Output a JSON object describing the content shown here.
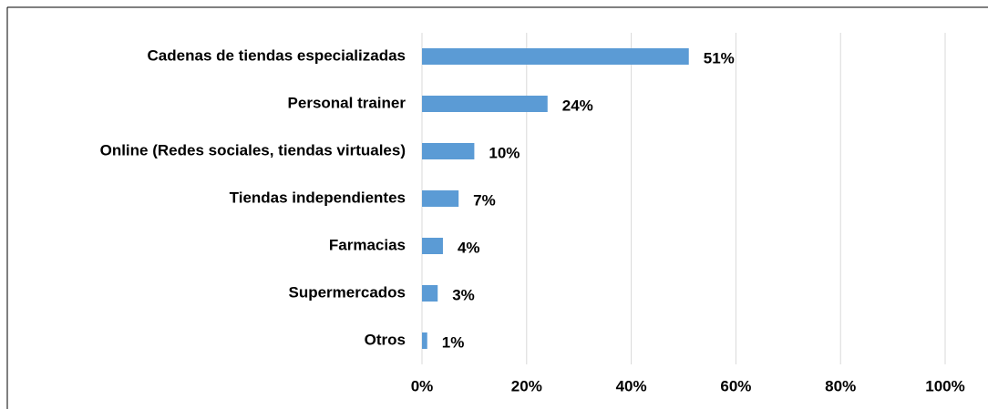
{
  "chart_data": {
    "type": "bar",
    "orientation": "horizontal",
    "categories": [
      "Cadenas de tiendas especializadas",
      "Personal trainer",
      "Online (Redes sociales, tiendas virtuales)",
      "Tiendas independientes",
      "Farmacias",
      "Supermercados",
      "Otros"
    ],
    "values": [
      51,
      24,
      10,
      7,
      4,
      3,
      1
    ],
    "value_labels": [
      "51%",
      "24%",
      "10%",
      "7%",
      "4%",
      "3%",
      "1%"
    ],
    "color": "#5b9bd5",
    "xlim": [
      0,
      100
    ],
    "xticks": [
      {
        "value": 0,
        "label": "0%"
      },
      {
        "value": 20,
        "label": "20%"
      },
      {
        "value": 40,
        "label": "40%"
      },
      {
        "value": 60,
        "label": "60%"
      },
      {
        "value": 80,
        "label": "80%"
      },
      {
        "value": 100,
        "label": "100%"
      }
    ],
    "grid": true
  }
}
